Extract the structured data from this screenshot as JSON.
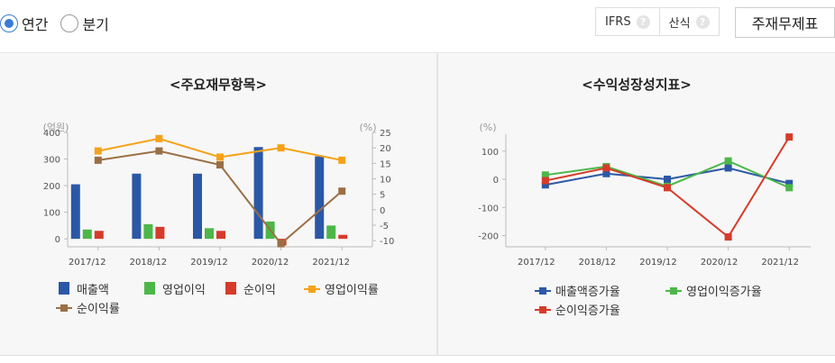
{
  "period_toggle": {
    "options": [
      {
        "label": "연간",
        "checked": true
      },
      {
        "label": "분기",
        "checked": false
      }
    ]
  },
  "toolbar": {
    "ifrs_label": "IFRS",
    "method_label": "산식",
    "help_glyph": "?",
    "main_button_label": "주재무제표"
  },
  "colors": {
    "revenue": "#2b58a6",
    "op_income": "#4cb748",
    "net_income": "#d63b2a",
    "op_margin": "#f5a21a",
    "net_margin": "#9b6f45"
  },
  "chart_data": [
    {
      "type": "bar",
      "title": "<주요재무항목>",
      "ylabel_left": "(억원)",
      "ylabel_right": "(%)",
      "categories": [
        "2017/12",
        "2018/12",
        "2019/12",
        "2020/12",
        "2021/12"
      ],
      "ylim_left": [
        -30,
        400
      ],
      "yticks_left": [
        0,
        100,
        200,
        300,
        400
      ],
      "ylim_right": [
        -12,
        25
      ],
      "yticks_right": [
        -10,
        -5,
        0,
        5,
        10,
        15,
        20,
        25
      ],
      "bar_series": [
        {
          "name": "매출액",
          "color": "#2b58a6",
          "values": [
            205,
            245,
            245,
            345,
            310
          ]
        },
        {
          "name": "영업이익",
          "color": "#4cb748",
          "values": [
            35,
            55,
            40,
            65,
            50
          ]
        },
        {
          "name": "순이익",
          "color": "#d63b2a",
          "values": [
            30,
            45,
            30,
            -25,
            15
          ]
        }
      ],
      "line_series": [
        {
          "name": "영업이익률",
          "color": "#f5a21a",
          "marker": "square",
          "values": [
            19,
            23,
            17,
            20,
            16
          ]
        },
        {
          "name": "순이익률",
          "color": "#9b6f45",
          "marker": "square",
          "values": [
            16,
            19,
            14.5,
            -11,
            6
          ]
        }
      ],
      "grid": false,
      "legend": "bottom"
    },
    {
      "type": "line",
      "title": "<수익성장성지표>",
      "ylabel": "(%)",
      "categories": [
        "2017/12",
        "2018/12",
        "2019/12",
        "2020/12",
        "2021/12"
      ],
      "ylim": [
        -240,
        160
      ],
      "yticks": [
        -200,
        -100,
        0,
        100
      ],
      "series": [
        {
          "name": "매출액증가율",
          "color": "#2b58a6",
          "values": [
            -20,
            20,
            0,
            40,
            -15
          ]
        },
        {
          "name": "영업이익증가율",
          "color": "#4cb748",
          "values": [
            15,
            45,
            -25,
            65,
            -30
          ]
        },
        {
          "name": "순이익증가율",
          "color": "#d63b2a",
          "values": [
            -5,
            40,
            -30,
            -205,
            150
          ]
        }
      ],
      "grid": false,
      "legend": "bottom"
    }
  ]
}
